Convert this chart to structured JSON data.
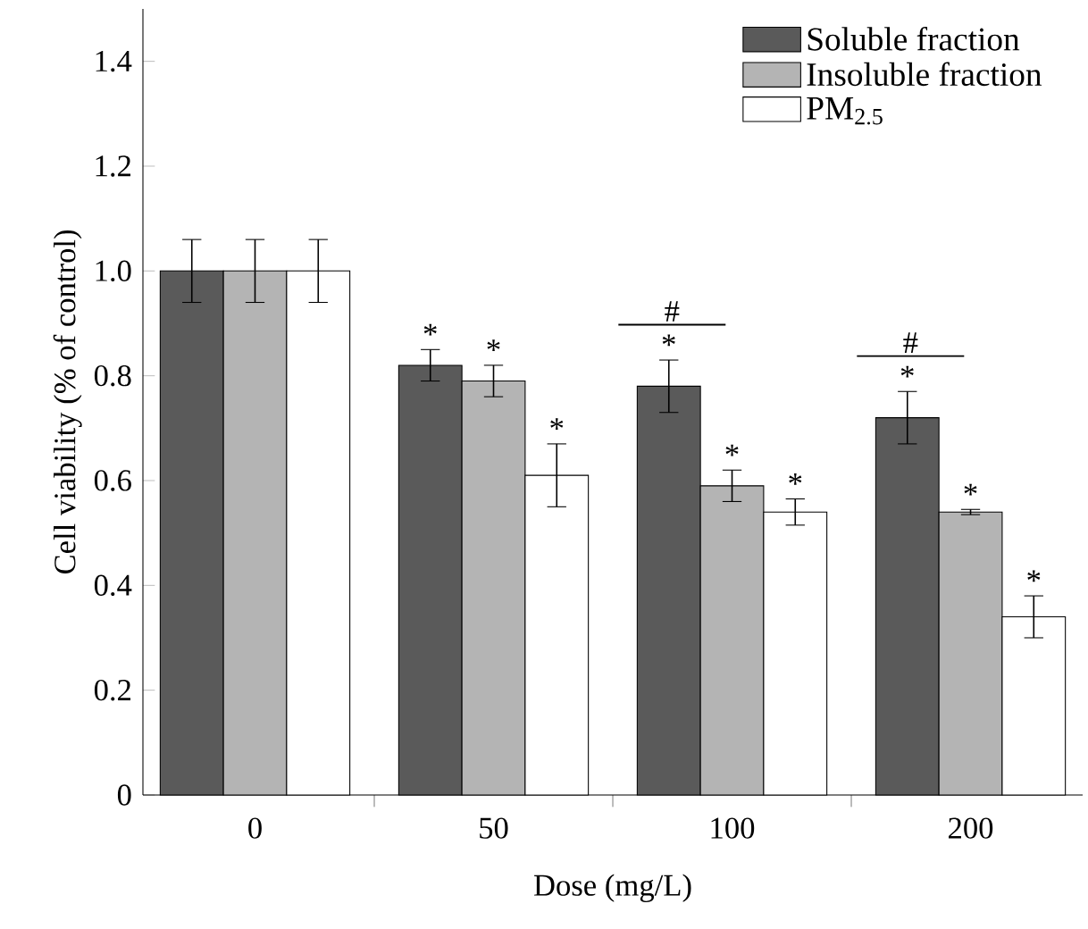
{
  "chart_data": {
    "type": "bar",
    "xlabel": "Dose (mg/L)",
    "ylabel": "Cell viability (% of control)",
    "categories": [
      "0",
      "50",
      "100",
      "200"
    ],
    "series": [
      {
        "name": "Soluble fraction",
        "color": "#5a5a5a",
        "values": [
          1.0,
          0.82,
          0.78,
          0.72
        ],
        "errors": [
          0.06,
          0.03,
          0.05,
          0.05
        ],
        "value_labels": [
          null,
          "*",
          "*",
          "*"
        ]
      },
      {
        "name": "Insoluble fraction",
        "color": "#b4b4b4",
        "values": [
          1.0,
          0.79,
          0.59,
          0.54
        ],
        "errors": [
          0.06,
          0.03,
          0.03,
          0.005
        ],
        "value_labels": [
          null,
          "*",
          "*",
          "*"
        ]
      },
      {
        "name": "PM$_{2.5}$",
        "color": "#ffffff",
        "values": [
          1.0,
          0.61,
          0.54,
          0.34
        ],
        "errors": [
          0.06,
          0.06,
          0.025,
          0.04
        ],
        "value_labels": [
          null,
          "*",
          "*",
          "*"
        ]
      }
    ],
    "ylim": [
      0,
      1.5
    ],
    "yticks": [
      0,
      {
        "value": 0.2,
        "label": "0.2"
      },
      {
        "value": 0.4,
        "label": "0.4"
      },
      {
        "value": 0.6,
        "label": "0.6"
      },
      {
        "value": 0.8,
        "label": "0.8"
      },
      {
        "value": 1.0,
        "label": "1.0"
      },
      {
        "value": 1.2,
        "label": "1.2"
      },
      {
        "value": 1.4,
        "label": "1.4"
      }
    ],
    "annotations": [
      "#",
      "#"
    ],
    "legend": "top right",
    "grid": false
  }
}
